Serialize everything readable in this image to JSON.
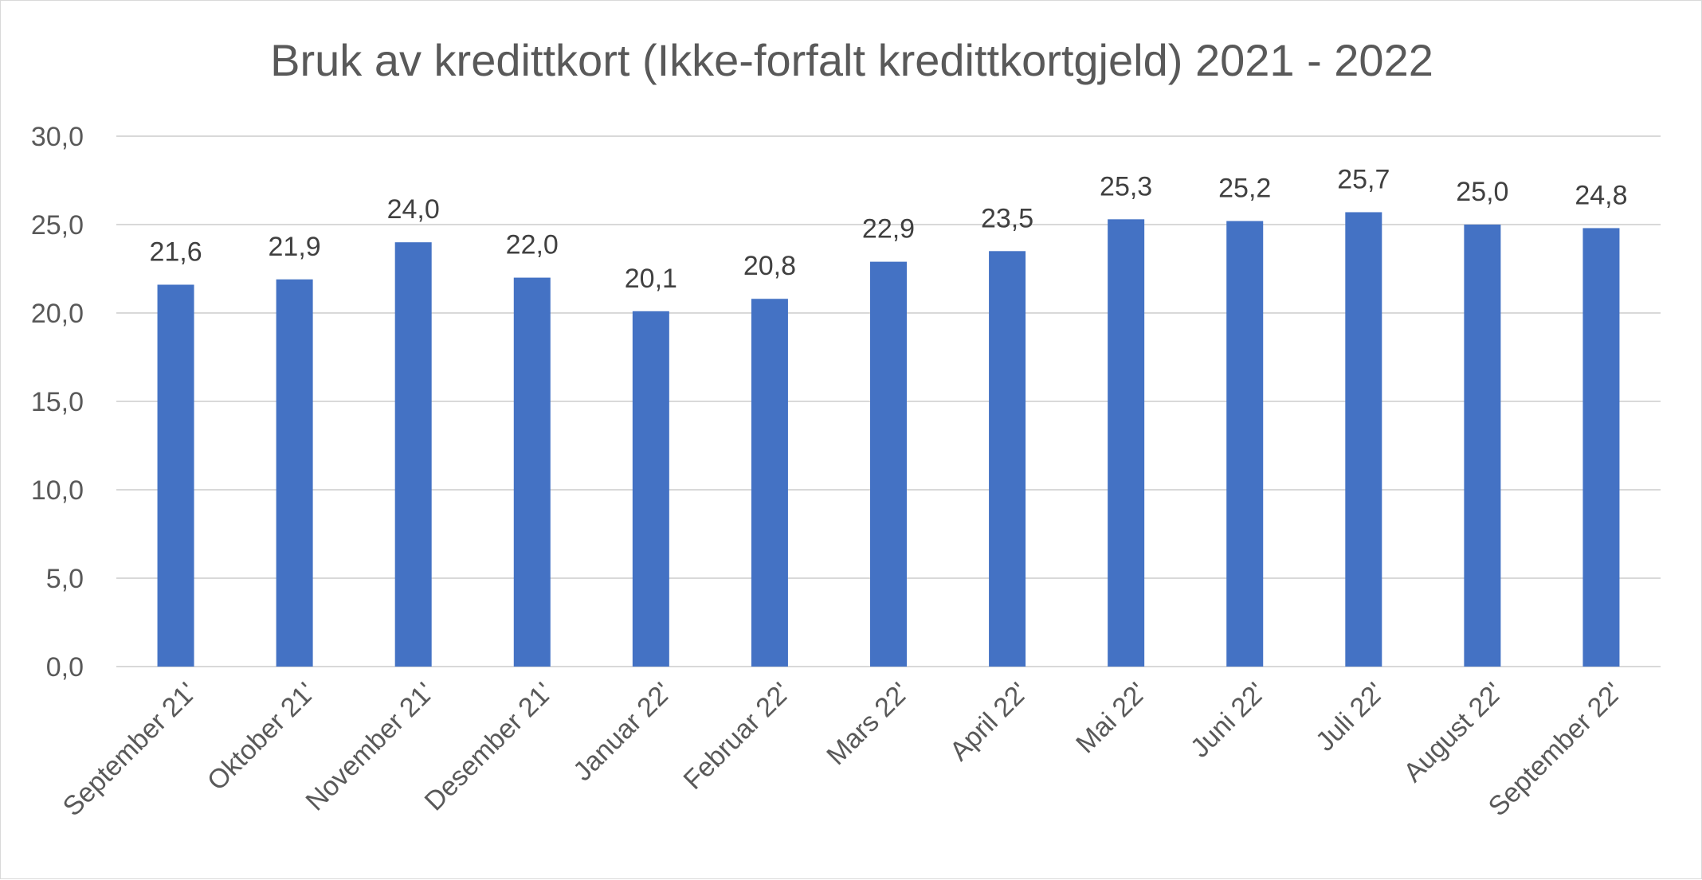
{
  "chart_data": {
    "type": "bar",
    "title": "Bruk av kredittkort (Ikke-forfalt kredittkortgjeld) 2021 - 2022",
    "xlabel": "",
    "ylabel": "",
    "categories": [
      "September 21'",
      "Oktober 21'",
      "November 21'",
      "Desember 21'",
      "Januar 22'",
      "Februar 22'",
      "Mars 22'",
      "April 22'",
      "Mai 22'",
      "Juni 22'",
      "Juli 22'",
      "August 22'",
      "September 22'"
    ],
    "values": [
      21.6,
      21.9,
      24.0,
      22.0,
      20.1,
      20.8,
      22.9,
      23.5,
      25.3,
      25.2,
      25.7,
      25.0,
      24.8
    ],
    "data_labels": [
      "21,6",
      "21,9",
      "24,0",
      "22,0",
      "20,1",
      "20,8",
      "22,9",
      "23,5",
      "25,3",
      "25,2",
      "25,7",
      "25,0",
      "24,8"
    ],
    "yticks": [
      0,
      5,
      10,
      15,
      20,
      25,
      30
    ],
    "ytick_labels": [
      "0,0",
      "5,0",
      "10,0",
      "15,0",
      "20,0",
      "25,0",
      "30,0"
    ],
    "ylim": [
      0,
      30
    ],
    "grid": true,
    "legend": "none",
    "colors": {
      "bar": "#4472c4",
      "grid": "#d9d9d9",
      "text": "#595959"
    }
  }
}
